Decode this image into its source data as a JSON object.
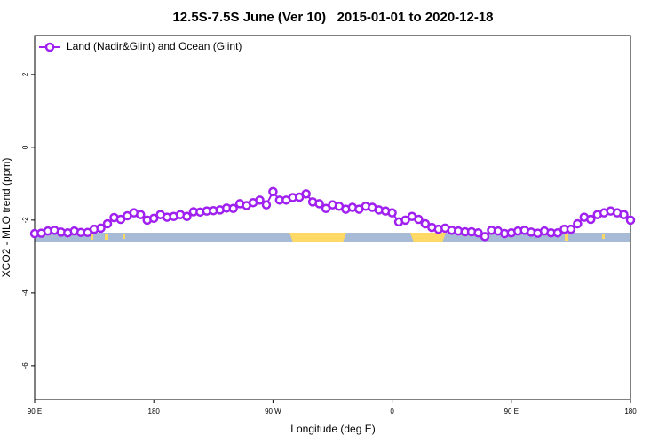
{
  "chart_data": {
    "type": "line",
    "title": "12.5S-7.5S June (Ver 10)   2015-01-01 to 2020-12-18",
    "x_label": "Longitude (deg E)",
    "y_label": "XCO2 - MLO trend (ppm)",
    "x": [
      90,
      95,
      100,
      105,
      110,
      115,
      120,
      125,
      130,
      135,
      140,
      145,
      150,
      155,
      160,
      165,
      170,
      175,
      180,
      185,
      190,
      195,
      200,
      205,
      210,
      215,
      220,
      225,
      230,
      235,
      240,
      245,
      250,
      255,
      260,
      265,
      270,
      275,
      280,
      285,
      290,
      295,
      300,
      305,
      310,
      315,
      320,
      325,
      330,
      335,
      340,
      345,
      350,
      355,
      360,
      365,
      370,
      375,
      380,
      385,
      390,
      395,
      400,
      405,
      410,
      415,
      420,
      425,
      430,
      435,
      440,
      445,
      450,
      455,
      460,
      465,
      470,
      475,
      480,
      485,
      490,
      495,
      500,
      505,
      510,
      515,
      520,
      525,
      530,
      535,
      540
    ],
    "series": [
      {
        "name": "Land (Nadir&Glint) and Ocean (Glint)",
        "color": "#a020f0",
        "values": [
          -2.37,
          -2.36,
          -2.3,
          -2.28,
          -2.33,
          -2.35,
          -2.3,
          -2.34,
          -2.34,
          -2.25,
          -2.22,
          -2.1,
          -1.93,
          -1.98,
          -1.88,
          -1.8,
          -1.85,
          -2.0,
          -1.95,
          -1.85,
          -1.92,
          -1.9,
          -1.85,
          -1.9,
          -1.77,
          -1.78,
          -1.75,
          -1.74,
          -1.72,
          -1.67,
          -1.68,
          -1.55,
          -1.6,
          -1.52,
          -1.45,
          -1.58,
          -1.22,
          -1.45,
          -1.45,
          -1.38,
          -1.37,
          -1.28,
          -1.5,
          -1.55,
          -1.68,
          -1.58,
          -1.62,
          -1.7,
          -1.65,
          -1.7,
          -1.62,
          -1.65,
          -1.72,
          -1.75,
          -1.8,
          -2.05,
          -2.0,
          -1.9,
          -1.98,
          -2.1,
          -2.2,
          -2.25,
          -2.22,
          -2.28,
          -2.3,
          -2.32,
          -2.32,
          -2.35,
          -2.45,
          -2.28,
          -2.3,
          -2.37,
          -2.35,
          -2.3,
          -2.28,
          -2.33,
          -2.36,
          -2.3,
          -2.35,
          -2.35,
          -2.25,
          -2.25,
          -2.1,
          -1.92,
          -1.98,
          -1.85,
          -1.8,
          -1.75,
          -1.8,
          -1.85,
          -2.0
        ]
      }
    ],
    "xlim": [
      90,
      540
    ],
    "xticks": [
      {
        "value": 90,
        "label": "90 E"
      },
      180,
      {
        "value": 270,
        "label": "90 W"
      },
      {
        "value": 360,
        "label": "0"
      },
      {
        "value": 450,
        "label": "90 E"
      },
      {
        "value": 540,
        "label": "180"
      }
    ],
    "ylim": [
      -6.93,
      3.07
    ],
    "yticks": [
      -6,
      -4,
      -2,
      0,
      2
    ],
    "legend": "top-left"
  }
}
